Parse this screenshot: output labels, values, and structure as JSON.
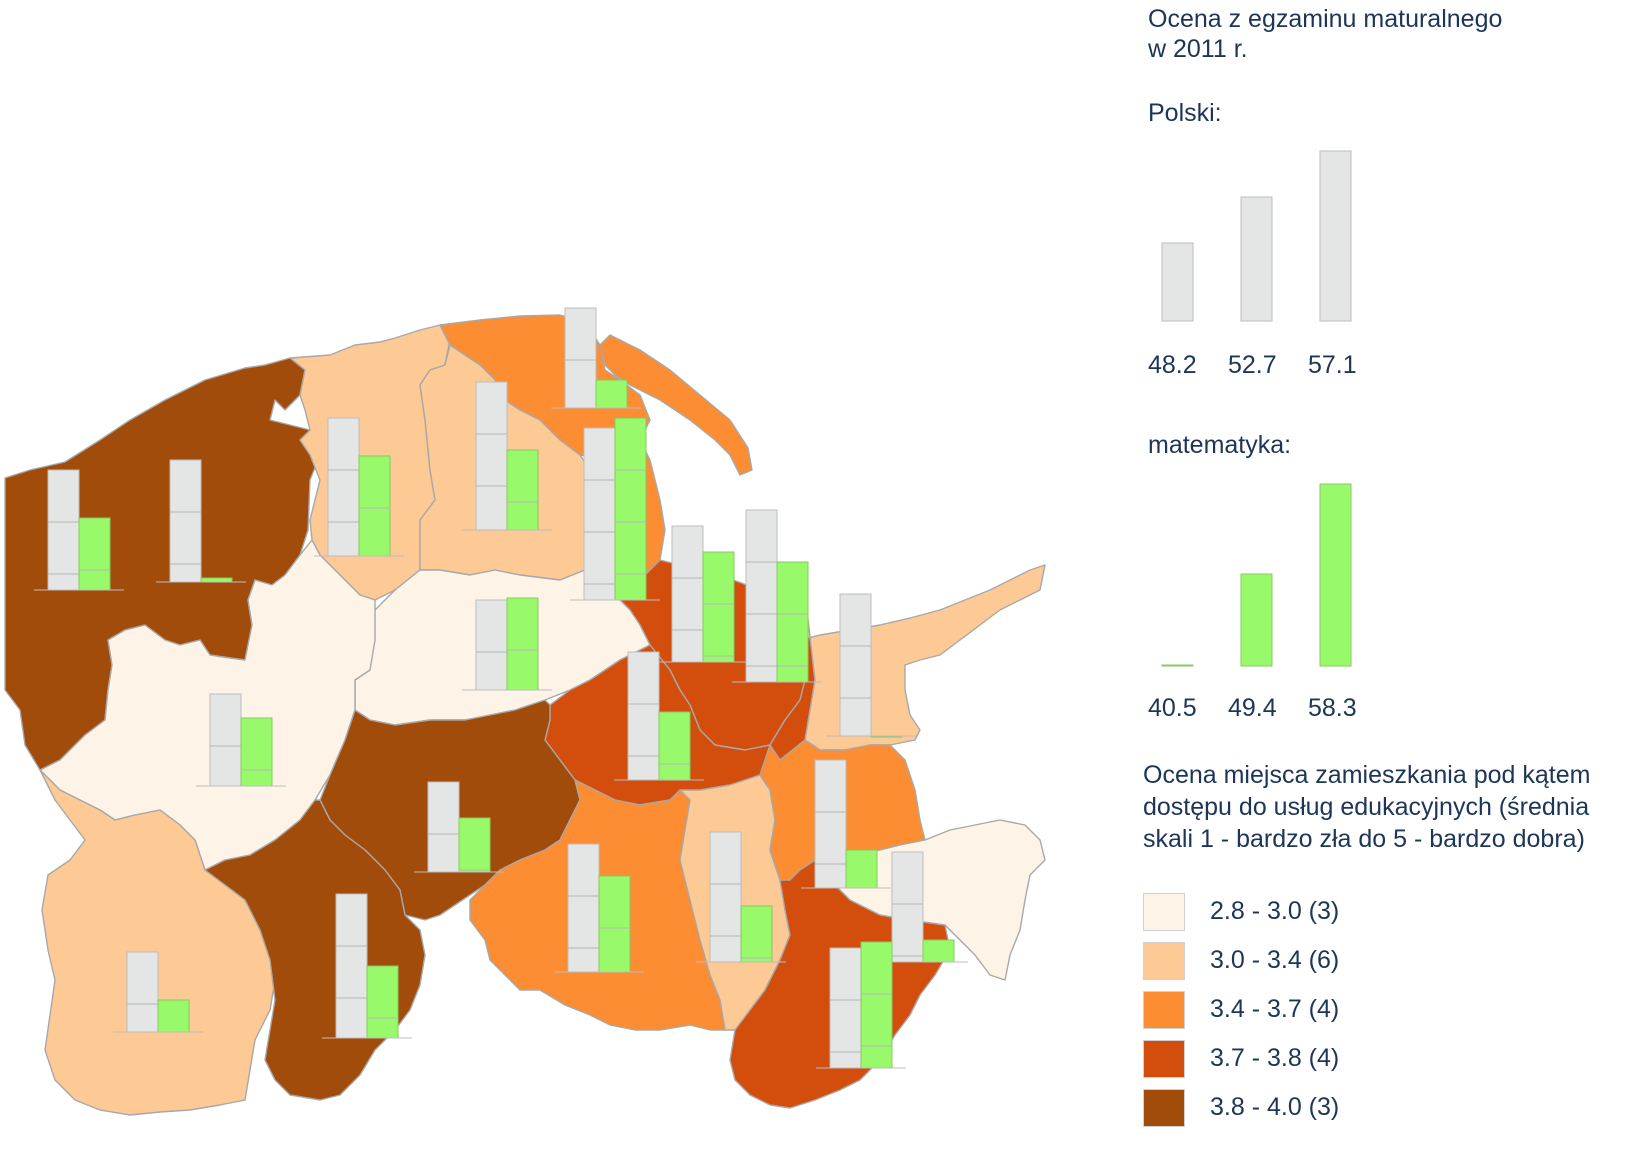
{
  "legend": {
    "title_line1": "Ocena z egzaminu maturalnego",
    "title_line2": "w 2011 r.",
    "polski_label": "Polski:",
    "polski_values": [
      "48.2",
      "52.7",
      "57.1"
    ],
    "matematyka_label": "matematyka:",
    "matematyka_values": [
      "40.5",
      "49.4",
      "58.3"
    ],
    "rating_line1": "Ocena miejsca zamieszkania pod kątem",
    "rating_line2": "dostępu do usług edukacyjnych (średnia",
    "rating_line3": "skali 1 - bardzo zła do 5 - bardzo dobra)",
    "classes": [
      {
        "label": "2.8 - 3.0 (3)",
        "color": "#fdf4e7"
      },
      {
        "label": "3.0 - 3.4 (6)",
        "color": "#fdc994"
      },
      {
        "label": "3.4 - 3.7 (4)",
        "color": "#fc8d32"
      },
      {
        "label": "3.7 - 3.8 (4)",
        "color": "#d34e0d"
      },
      {
        "label": "3.8 - 4.0 (3)",
        "color": "#a24c0b"
      }
    ]
  },
  "colors": {
    "polski_bar": "#e4e6e5",
    "matematyka_bar": "#98fa6a"
  }
}
